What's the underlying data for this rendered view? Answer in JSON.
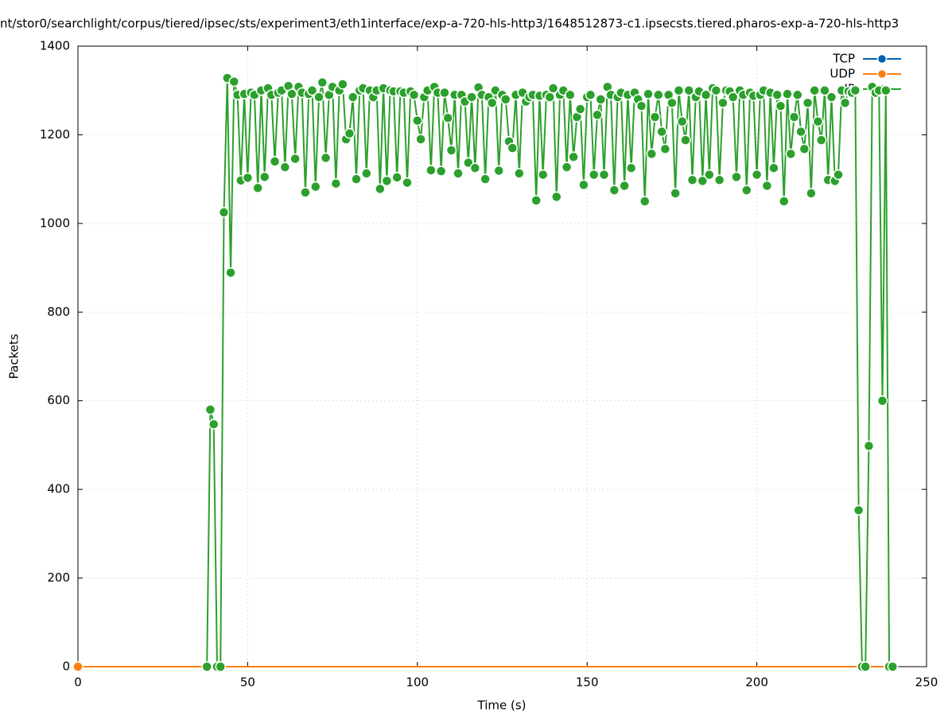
{
  "chart_data": {
    "type": "line",
    "title": "nt/stor0/searchlight/corpus/tiered/ipsec/sts/experiment3/eth1interface/exp-a-720-hls-http3/1648512873-c1.ipsecsts.tiered.pharos-exp-a-720-hls-http3",
    "xlabel": "Time (s)",
    "ylabel": "Packets",
    "xlim": [
      0,
      250
    ],
    "xticks": [
      0,
      50,
      100,
      150,
      200,
      250
    ],
    "ylim": [
      0,
      1400
    ],
    "yticks": [
      0,
      200,
      400,
      600,
      800,
      1000,
      1200,
      1400
    ],
    "grid": true,
    "legend": "top-right",
    "series": [
      {
        "name": "TCP",
        "color": "#0060ad",
        "x": [
          0,
          240
        ],
        "values": [
          0,
          0
        ]
      },
      {
        "name": "UDP",
        "color": "#ff7f0e",
        "x": [
          0,
          240
        ],
        "values": [
          0,
          0
        ]
      },
      {
        "name": "IP",
        "color": "#2ca02c",
        "x": [
          38,
          39,
          40,
          41,
          42,
          43,
          44,
          45,
          46,
          47,
          48,
          49,
          50,
          51,
          52,
          53,
          54,
          55,
          56,
          57,
          58,
          59,
          60,
          61,
          62,
          63,
          64,
          65,
          66,
          67,
          68,
          69,
          70,
          71,
          72,
          73,
          74,
          75,
          76,
          77,
          78,
          79,
          80,
          81,
          82,
          83,
          84,
          85,
          86,
          87,
          88,
          89,
          90,
          91,
          92,
          93,
          94,
          95,
          96,
          97,
          98,
          99,
          100,
          101,
          102,
          103,
          104,
          105,
          106,
          107,
          108,
          109,
          110,
          111,
          112,
          113,
          114,
          115,
          116,
          117,
          118,
          119,
          120,
          121,
          122,
          123,
          124,
          125,
          126,
          127,
          128,
          129,
          130,
          131,
          132,
          133,
          134,
          135,
          136,
          137,
          138,
          139,
          140,
          141,
          142,
          143,
          144,
          145,
          146,
          147,
          148,
          149,
          150,
          151,
          152,
          153,
          154,
          155,
          156,
          157,
          158,
          159,
          160,
          161,
          162,
          163,
          164,
          165,
          166,
          167,
          168,
          169,
          170,
          171,
          172,
          173,
          174,
          175,
          176,
          177,
          178,
          179,
          180,
          181,
          182,
          183,
          184,
          185,
          186,
          187,
          188,
          189,
          190,
          191,
          192,
          193,
          194,
          195,
          196,
          197,
          198,
          199,
          200,
          201,
          202,
          203,
          204,
          205,
          206,
          207,
          208,
          209,
          210,
          211,
          212,
          213,
          214,
          215,
          216,
          217,
          218,
          219,
          220,
          221,
          222,
          223,
          224,
          225,
          226,
          227,
          228,
          229,
          230,
          231,
          232,
          233,
          234,
          235,
          236,
          237,
          238,
          239,
          240
        ],
        "values": [
          0,
          580,
          547,
          0,
          0,
          1025,
          1328,
          889,
          1320,
          1290,
          1097,
          1292,
          1103,
          1295,
          1290,
          1080,
          1300,
          1105,
          1305,
          1290,
          1140,
          1295,
          1300,
          1127,
          1310,
          1292,
          1146,
          1308,
          1295,
          1070,
          1292,
          1300,
          1083,
          1285,
          1318,
          1148,
          1290,
          1308,
          1090,
          1300,
          1314,
          1190,
          1203,
          1285,
          1100,
          1300,
          1305,
          1113,
          1300,
          1285,
          1300,
          1078,
          1305,
          1096,
          1300,
          1298,
          1104,
          1298,
          1295,
          1092,
          1298,
          1290,
          1232,
          1190,
          1285,
          1300,
          1120,
          1308,
          1295,
          1118,
          1295,
          1238,
          1165,
          1290,
          1113,
          1290,
          1275,
          1137,
          1285,
          1125,
          1307,
          1290,
          1100,
          1285,
          1272,
          1300,
          1119,
          1290,
          1280,
          1185,
          1170,
          1290,
          1113,
          1295,
          1275,
          1285,
          1290,
          1052,
          1288,
          1110,
          1290,
          1285,
          1305,
          1060,
          1290,
          1300,
          1127,
          1290,
          1150,
          1240,
          1258,
          1087,
          1285,
          1290,
          1110,
          1245,
          1280,
          1110,
          1308,
          1290,
          1075,
          1285,
          1295,
          1085,
          1290,
          1125,
          1295,
          1280,
          1265,
          1050,
          1292,
          1157,
          1240,
          1290,
          1207,
          1168,
          1290,
          1272,
          1068,
          1300,
          1230,
          1188,
          1300,
          1098,
          1285,
          1298,
          1096,
          1290,
          1110,
          1305,
          1300,
          1098,
          1272,
          1300,
          1298,
          1285,
          1105,
          1300,
          1290,
          1075,
          1295,
          1288,
          1110,
          1290,
          1300,
          1085,
          1295,
          1125,
          1290,
          1265,
          1050,
          1292,
          1157,
          1240,
          1290,
          1207,
          1168,
          1272,
          1068,
          1300,
          1230,
          1188,
          1300,
          1098,
          1285,
          1096,
          1110,
          1300,
          1272,
          1298,
          1295,
          1300,
          353,
          0,
          0,
          498,
          1308,
          1295,
          1300,
          600,
          1300,
          0,
          0
        ]
      }
    ]
  }
}
